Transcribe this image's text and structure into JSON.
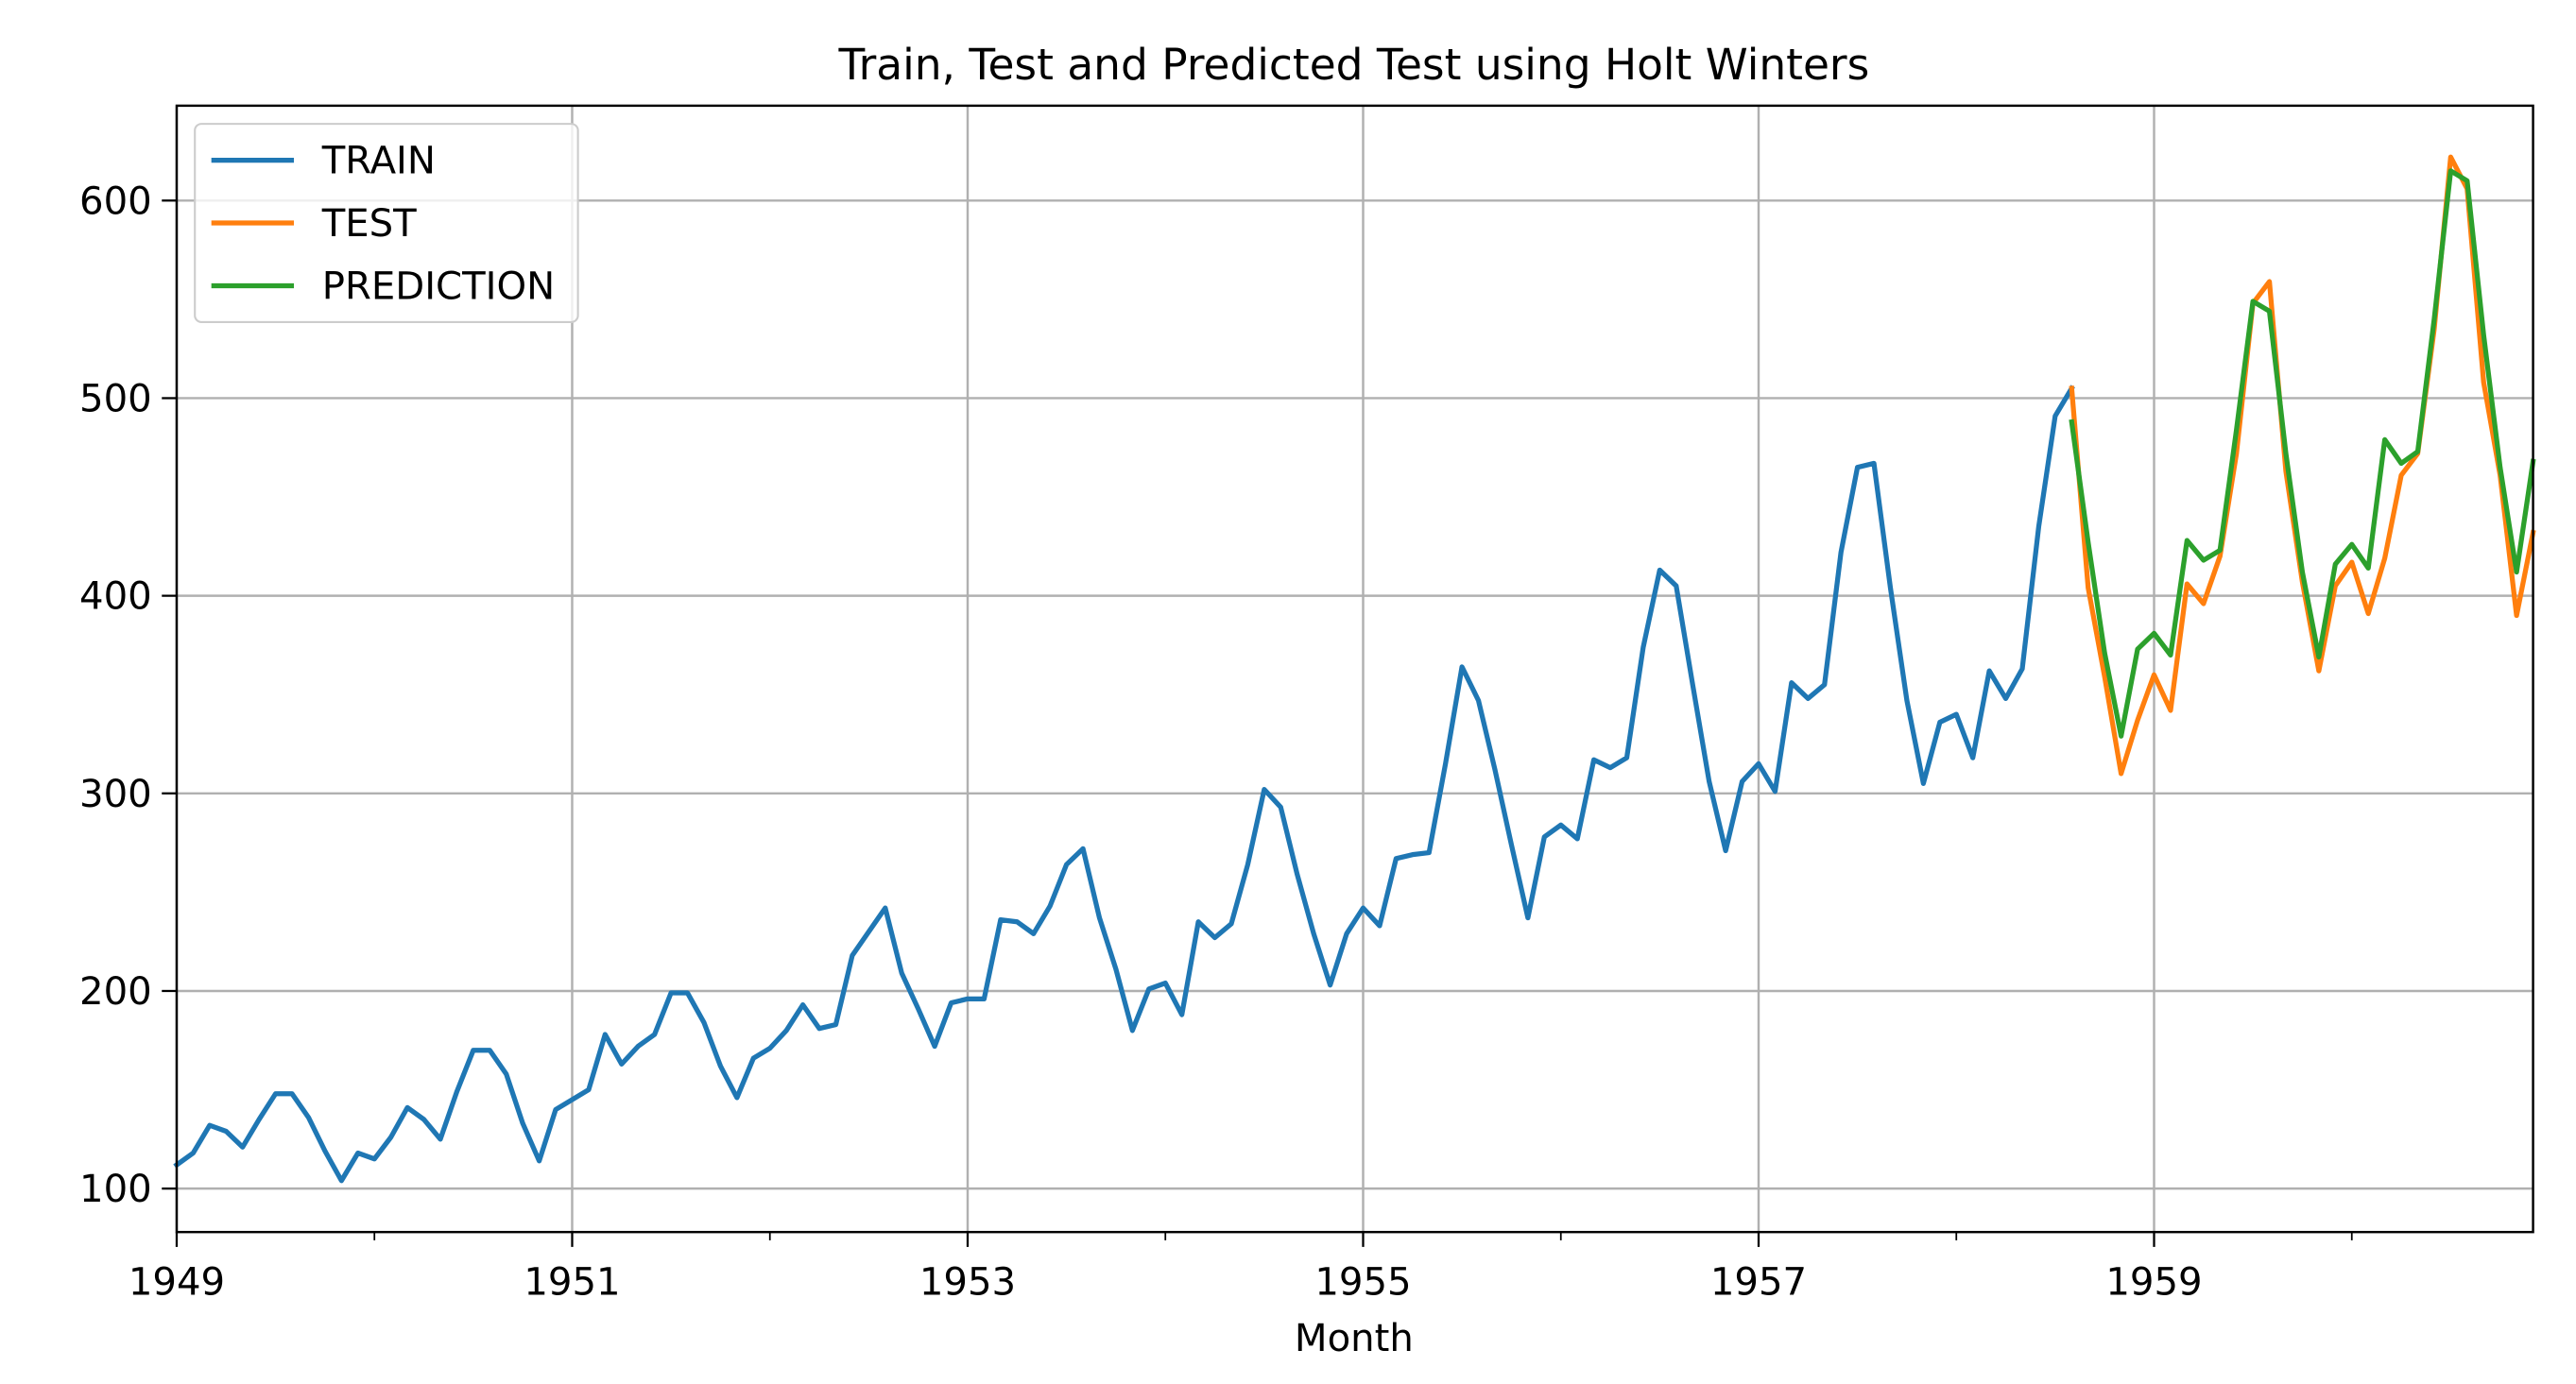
{
  "chart_data": {
    "type": "line",
    "title": "Train, Test and Predicted Test using Holt Winters",
    "xlabel": "Month",
    "ylabel": "",
    "xlim": [
      "1949-01",
      "1960-12"
    ],
    "ylim": [
      78,
      648
    ],
    "grid": true,
    "legend_position": "top-left",
    "x_ticks": [
      {
        "value": "1949-01",
        "label": "1949"
      },
      {
        "value": "1951-01",
        "label": "1951"
      },
      {
        "value": "1953-01",
        "label": "1953"
      },
      {
        "value": "1955-01",
        "label": "1955"
      },
      {
        "value": "1957-01",
        "label": "1957"
      },
      {
        "value": "1959-01",
        "label": "1959"
      }
    ],
    "x_minor_ticks": [
      "1950-01",
      "1952-01",
      "1954-01",
      "1956-01",
      "1958-01",
      "1960-01"
    ],
    "y_ticks": [
      {
        "value": 100,
        "label": "100"
      },
      {
        "value": 200,
        "label": "200"
      },
      {
        "value": 300,
        "label": "300"
      },
      {
        "value": 400,
        "label": "400"
      },
      {
        "value": 500,
        "label": "500"
      },
      {
        "value": 600,
        "label": "600"
      }
    ],
    "series": [
      {
        "name": "TRAIN",
        "color": "#1f77b4",
        "x_start": "1949-01",
        "values": [
          112,
          118,
          132,
          129,
          121,
          135,
          148,
          148,
          136,
          119,
          104,
          118,
          115,
          126,
          141,
          135,
          125,
          149,
          170,
          170,
          158,
          133,
          114,
          140,
          145,
          150,
          178,
          163,
          172,
          178,
          199,
          199,
          184,
          162,
          146,
          166,
          171,
          180,
          193,
          181,
          183,
          218,
          230,
          242,
          209,
          191,
          172,
          194,
          196,
          196,
          236,
          235,
          229,
          243,
          264,
          272,
          237,
          211,
          180,
          201,
          204,
          188,
          235,
          227,
          234,
          264,
          302,
          293,
          259,
          229,
          203,
          229,
          242,
          233,
          267,
          269,
          270,
          315,
          364,
          347,
          312,
          274,
          237,
          278,
          284,
          277,
          317,
          313,
          318,
          374,
          413,
          405,
          355,
          306,
          271,
          306,
          315,
          301,
          356,
          348,
          355,
          422,
          465,
          467,
          404,
          347,
          305,
          336,
          340,
          318,
          362,
          348,
          363,
          435,
          491,
          505
        ]
      },
      {
        "name": "TEST",
        "color": "#ff7f0e",
        "x_start": "1958-08",
        "values": [
          505,
          404,
          359,
          310,
          337,
          360,
          342,
          406,
          396,
          420,
          472,
          548,
          559,
          463,
          407,
          362,
          405,
          417,
          391,
          419,
          461,
          472,
          535,
          622,
          606,
          508,
          461,
          390,
          432
        ]
      },
      {
        "name": "PREDICTION",
        "color": "#2ca02c",
        "x_start": "1958-08",
        "values": [
          488,
          427,
          371,
          329,
          373,
          381,
          370,
          428,
          418,
          423,
          484,
          549,
          544,
          472,
          412,
          369,
          416,
          426,
          414,
          479,
          467,
          473,
          540,
          615,
          610,
          532,
          465,
          412,
          468
        ]
      }
    ]
  }
}
